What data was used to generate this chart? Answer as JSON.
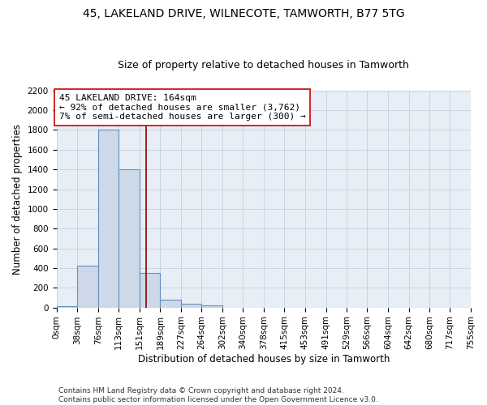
{
  "title": "45, LAKELAND DRIVE, WILNECOTE, TAMWORTH, B77 5TG",
  "subtitle": "Size of property relative to detached houses in Tamworth",
  "xlabel": "Distribution of detached houses by size in Tamworth",
  "ylabel": "Number of detached properties",
  "bin_edges": [
    0,
    38,
    76,
    113,
    151,
    189,
    227,
    264,
    302,
    340,
    378,
    415,
    453,
    491,
    529,
    566,
    604,
    642,
    680,
    717,
    755
  ],
  "bin_labels": [
    "0sqm",
    "38sqm",
    "76sqm",
    "113sqm",
    "151sqm",
    "189sqm",
    "227sqm",
    "264sqm",
    "302sqm",
    "340sqm",
    "378sqm",
    "415sqm",
    "453sqm",
    "491sqm",
    "529sqm",
    "566sqm",
    "604sqm",
    "642sqm",
    "680sqm",
    "717sqm",
    "755sqm"
  ],
  "bar_heights": [
    15,
    420,
    1800,
    1400,
    350,
    80,
    35,
    20,
    0,
    0,
    0,
    0,
    0,
    0,
    0,
    0,
    0,
    0,
    0,
    0
  ],
  "bar_color": "#cdd9e8",
  "bar_edge_color": "#6090c0",
  "bar_linewidth": 0.8,
  "property_size": 164,
  "vline_color": "#8b0000",
  "vline_linewidth": 1.2,
  "annotation_text": "45 LAKELAND DRIVE: 164sqm\n← 92% of detached houses are smaller (3,762)\n7% of semi-detached houses are larger (300) →",
  "annotation_box_color": "white",
  "annotation_box_edgecolor": "#cc0000",
  "ylim": [
    0,
    2200
  ],
  "yticks": [
    0,
    200,
    400,
    600,
    800,
    1000,
    1200,
    1400,
    1600,
    1800,
    2000,
    2200
  ],
  "grid_color": "#c8d4e4",
  "bg_color": "#e8eef6",
  "footer_text": "Contains HM Land Registry data © Crown copyright and database right 2024.\nContains public sector information licensed under the Open Government Licence v3.0.",
  "title_fontsize": 10,
  "subtitle_fontsize": 9,
  "xlabel_fontsize": 8.5,
  "ylabel_fontsize": 8.5,
  "tick_fontsize": 7.5,
  "annotation_fontsize": 8,
  "footer_fontsize": 6.5
}
